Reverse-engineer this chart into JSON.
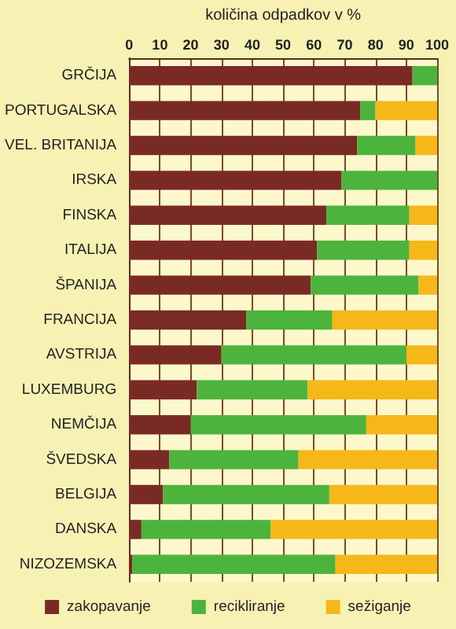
{
  "chart_data": {
    "type": "bar",
    "orientation": "horizontal",
    "stacked": true,
    "xlabel": "količina odpadkov v %",
    "categories": [
      "GRČIJA",
      "PORTUGALSKA",
      "VEL. BRITANIJA",
      "IRSKA",
      "FINSKA",
      "ITALIJA",
      "ŠPANIJA",
      "FRANCIJA",
      "AVSTRIJA",
      "LUXEMBURG",
      "NEMČIJA",
      "ŠVEDSKA",
      "BELGIJA",
      "DANSKA",
      "NIZOZEMSKA"
    ],
    "series": [
      {
        "name": "zakopavanje",
        "color": "#7a2a24",
        "values": [
          92,
          75,
          74,
          69,
          64,
          61,
          59,
          38,
          30,
          22,
          20,
          13,
          11,
          4,
          1
        ]
      },
      {
        "name": "recikliranje",
        "color": "#4cb43c",
        "values": [
          8,
          5,
          19,
          31,
          27,
          30,
          35,
          28,
          60,
          36,
          57,
          42,
          54,
          42,
          66
        ]
      },
      {
        "name": "sežiganje",
        "color": "#f6b718",
        "values": [
          0,
          20,
          7,
          0,
          9,
          9,
          6,
          34,
          10,
          42,
          23,
          45,
          35,
          54,
          33
        ]
      }
    ],
    "xlim": [
      0,
      100
    ],
    "xticks": [
      0,
      10,
      20,
      30,
      40,
      50,
      60,
      70,
      80,
      90,
      100
    ],
    "grid": "x",
    "legend": "bottom"
  }
}
